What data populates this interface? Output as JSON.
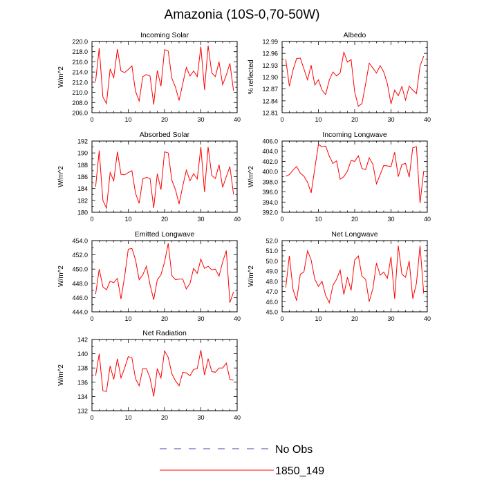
{
  "figure_title": "Amazonia (10S-0,70-50W)",
  "legend": {
    "entries": [
      {
        "label": "No Obs",
        "color": "#4444aa",
        "dash": "dashed"
      },
      {
        "label": "1850_149",
        "color": "#ff0000",
        "dash": "solid"
      }
    ]
  },
  "chart_data": [
    {
      "type": "line",
      "title": "Incoming Solar",
      "ylabel": "W/m^2",
      "xlim": [
        0,
        40
      ],
      "ylim": [
        206,
        220
      ],
      "xticks": [
        0,
        10,
        20,
        30,
        40
      ],
      "yticks": [
        206,
        208,
        210,
        212,
        214,
        216,
        218,
        220
      ],
      "ydecimals": 1,
      "series": [
        {
          "name": "1850_149",
          "color": "#ff0000",
          "x": [
            1,
            2,
            3,
            4,
            5,
            6,
            7,
            8,
            9,
            10,
            11,
            12,
            13,
            14,
            15,
            16,
            17,
            18,
            19,
            20,
            21,
            22,
            23,
            24,
            25,
            26,
            27,
            28,
            29,
            30,
            31,
            32,
            33,
            34,
            35,
            36,
            37,
            38,
            39
          ],
          "values": [
            212.2,
            218.7,
            209.1,
            207.8,
            214.6,
            212.9,
            218.5,
            214.2,
            213.9,
            214.5,
            215.2,
            210.2,
            208.3,
            213.1,
            213.5,
            213.2,
            207.6,
            214.3,
            211.2,
            218.4,
            218.1,
            212.8,
            211.0,
            208.4,
            211.7,
            214.9,
            213.2,
            214.2,
            213.1,
            219.0,
            210.5,
            219.2,
            213.8,
            213.1,
            216.0,
            211.5,
            213.4,
            215.7,
            210.3
          ]
        }
      ]
    },
    {
      "type": "line",
      "title": "Albedo",
      "ylabel": "% reflected",
      "xlim": [
        0,
        40
      ],
      "ylim": [
        12.81,
        12.99
      ],
      "xticks": [
        0,
        10,
        20,
        30,
        40
      ],
      "yticks": [
        12.81,
        12.84,
        12.87,
        12.9,
        12.93,
        12.96,
        12.99
      ],
      "ydecimals": 2,
      "series": [
        {
          "name": "1850_149",
          "color": "#ff0000",
          "x": [
            1,
            2,
            3,
            4,
            5,
            6,
            7,
            8,
            9,
            10,
            11,
            12,
            13,
            14,
            15,
            16,
            17,
            18,
            19,
            20,
            21,
            22,
            23,
            24,
            25,
            26,
            27,
            28,
            29,
            30,
            31,
            32,
            33,
            34,
            35,
            36,
            37,
            38,
            39
          ],
          "values": [
            12.945,
            12.877,
            12.918,
            12.947,
            12.948,
            12.921,
            12.893,
            12.93,
            12.88,
            12.893,
            12.867,
            12.856,
            12.893,
            12.913,
            12.903,
            12.911,
            12.963,
            12.938,
            12.944,
            12.862,
            12.826,
            12.833,
            12.883,
            12.935,
            12.923,
            12.91,
            12.929,
            12.913,
            12.883,
            12.832,
            12.867,
            12.853,
            12.876,
            12.842,
            12.877,
            12.867,
            12.858,
            12.928,
            12.953
          ]
        }
      ]
    },
    {
      "type": "line",
      "title": "Absorbed Solar",
      "ylabel": "W/m^2",
      "xlim": [
        0,
        40
      ],
      "ylim": [
        180,
        192
      ],
      "xticks": [
        0,
        10,
        20,
        30,
        40
      ],
      "yticks": [
        180,
        182,
        184,
        186,
        188,
        190,
        192
      ],
      "ydecimals": 0,
      "series": [
        {
          "name": "1850_149",
          "color": "#ff0000",
          "x": [
            1,
            2,
            3,
            4,
            5,
            6,
            7,
            8,
            9,
            10,
            11,
            12,
            13,
            14,
            15,
            16,
            17,
            18,
            19,
            20,
            21,
            22,
            23,
            24,
            25,
            26,
            27,
            28,
            29,
            30,
            31,
            32,
            33,
            34,
            35,
            36,
            37,
            38,
            39
          ],
          "values": [
            184.3,
            190.4,
            182.0,
            180.7,
            186.7,
            185.3,
            190.2,
            186.4,
            186.3,
            186.7,
            187.0,
            183.2,
            181.5,
            185.6,
            185.9,
            185.7,
            180.7,
            186.5,
            183.8,
            190.2,
            190.0,
            185.4,
            183.8,
            181.4,
            184.4,
            187.1,
            185.3,
            186.5,
            185.6,
            191.0,
            183.4,
            191.0,
            186.2,
            185.7,
            188.0,
            184.2,
            186.0,
            187.7,
            183.0
          ]
        }
      ]
    },
    {
      "type": "line",
      "title": "Incoming Longwave",
      "ylabel": "W/m^2",
      "xlim": [
        0,
        40
      ],
      "ylim": [
        392,
        406
      ],
      "xticks": [
        0,
        10,
        20,
        30,
        40
      ],
      "yticks": [
        392,
        394,
        396,
        398,
        400,
        402,
        404,
        406
      ],
      "ydecimals": 1,
      "series": [
        {
          "name": "1850_149",
          "color": "#ff0000",
          "x": [
            1,
            2,
            3,
            4,
            5,
            6,
            7,
            8,
            9,
            10,
            11,
            12,
            13,
            14,
            15,
            16,
            17,
            18,
            19,
            20,
            21,
            22,
            23,
            24,
            25,
            26,
            27,
            28,
            29,
            30,
            31,
            32,
            33,
            34,
            35,
            36,
            37,
            38,
            39
          ],
          "values": [
            399.1,
            399.4,
            400.3,
            401.0,
            399.7,
            399.1,
            397.9,
            395.8,
            400.6,
            405.3,
            404.9,
            405.0,
            403.0,
            401.6,
            402.1,
            398.5,
            399.0,
            400.1,
            402.2,
            402.0,
            403.1,
            400.6,
            400.4,
            402.7,
            401.4,
            397.6,
            399.4,
            401.2,
            401.1,
            401.0,
            403.8,
            399.0,
            401.4,
            401.6,
            398.9,
            404.7,
            404.9,
            393.8,
            400.1
          ]
        }
      ]
    },
    {
      "type": "line",
      "title": "Emitted Longwave",
      "ylabel": "W/m^2",
      "xlim": [
        0,
        40
      ],
      "ylim": [
        444,
        454
      ],
      "xticks": [
        0,
        10,
        20,
        30,
        40
      ],
      "yticks": [
        444,
        446,
        448,
        450,
        452,
        454
      ],
      "ydecimals": 1,
      "series": [
        {
          "name": "1850_149",
          "color": "#ff0000",
          "x": [
            1,
            2,
            3,
            4,
            5,
            6,
            7,
            8,
            9,
            10,
            11,
            12,
            13,
            14,
            15,
            16,
            17,
            18,
            19,
            20,
            21,
            22,
            23,
            24,
            25,
            26,
            27,
            28,
            29,
            30,
            31,
            32,
            33,
            34,
            35,
            36,
            37,
            38,
            39
          ],
          "values": [
            446.5,
            450.0,
            447.5,
            447.1,
            448.3,
            448.1,
            448.7,
            445.8,
            449.0,
            452.8,
            452.9,
            451.3,
            448.5,
            449.2,
            450.4,
            447.8,
            445.7,
            448.5,
            449.2,
            451.0,
            453.6,
            449.1,
            448.5,
            448.6,
            448.6,
            447.2,
            448.0,
            450.1,
            449.4,
            451.4,
            450.1,
            450.4,
            449.9,
            450.0,
            449.0,
            451.0,
            452.6,
            445.3,
            446.8
          ]
        }
      ]
    },
    {
      "type": "line",
      "title": "Net Longwave",
      "ylabel": "W/m^2",
      "xlim": [
        0,
        40
      ],
      "ylim": [
        45,
        52
      ],
      "xticks": [
        0,
        10,
        20,
        30,
        40
      ],
      "yticks": [
        45,
        46,
        47,
        48,
        49,
        50,
        51,
        52
      ],
      "ydecimals": 1,
      "series": [
        {
          "name": "1850_149",
          "color": "#ff0000",
          "x": [
            1,
            2,
            3,
            4,
            5,
            6,
            7,
            8,
            9,
            10,
            11,
            12,
            13,
            14,
            15,
            16,
            17,
            18,
            19,
            20,
            21,
            22,
            23,
            24,
            25,
            26,
            27,
            28,
            29,
            30,
            31,
            32,
            33,
            34,
            35,
            36,
            37,
            38,
            39
          ],
          "values": [
            47.4,
            50.5,
            47.2,
            46.1,
            48.7,
            48.9,
            51.0,
            50.1,
            48.2,
            47.5,
            48.0,
            46.6,
            45.9,
            47.6,
            48.2,
            49.1,
            46.7,
            48.4,
            47.1,
            50.1,
            50.5,
            48.5,
            48.2,
            46.0,
            47.3,
            49.8,
            48.6,
            48.9,
            48.3,
            50.4,
            46.3,
            51.5,
            48.7,
            48.4,
            50.0,
            46.3,
            47.8,
            51.5,
            46.8
          ]
        }
      ]
    },
    {
      "type": "line",
      "title": "Net Radiation",
      "ylabel": "W/m^2",
      "xlim": [
        0,
        40
      ],
      "ylim": [
        132,
        142
      ],
      "xticks": [
        0,
        10,
        20,
        30,
        40
      ],
      "yticks": [
        132,
        134,
        136,
        138,
        140,
        142
      ],
      "ydecimals": 0,
      "series": [
        {
          "name": "1850_149",
          "color": "#ff0000",
          "x": [
            1,
            2,
            3,
            4,
            5,
            6,
            7,
            8,
            9,
            10,
            11,
            12,
            13,
            14,
            15,
            16,
            17,
            18,
            19,
            20,
            21,
            22,
            23,
            24,
            25,
            26,
            27,
            28,
            29,
            30,
            31,
            32,
            33,
            34,
            35,
            36,
            37,
            38,
            39
          ],
          "values": [
            136.9,
            140.0,
            134.8,
            134.7,
            138.3,
            136.4,
            139.3,
            136.6,
            138.0,
            139.6,
            139.4,
            136.5,
            135.5,
            137.9,
            137.9,
            136.6,
            134.0,
            137.9,
            136.6,
            140.4,
            139.5,
            137.2,
            136.2,
            135.5,
            137.4,
            137.3,
            136.9,
            137.8,
            137.9,
            140.5,
            137.0,
            139.3,
            137.5,
            137.4,
            138.0,
            138.0,
            138.7,
            136.4,
            136.3
          ]
        }
      ]
    }
  ]
}
